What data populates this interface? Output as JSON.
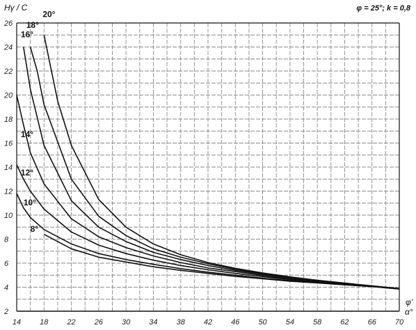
{
  "chart_data": {
    "type": "line",
    "title": "",
    "ylabel": "Hγ / C",
    "xlabel": "α°",
    "params_label": "φ = 25°; k = 0,8",
    "phi_label": "φ'",
    "xlim": [
      14,
      70
    ],
    "ylim": [
      2,
      26
    ],
    "x_ticks": [
      14,
      18,
      22,
      26,
      30,
      34,
      38,
      42,
      46,
      50,
      54,
      58,
      62,
      66,
      70
    ],
    "y_ticks": [
      2,
      4,
      6,
      8,
      10,
      12,
      14,
      16,
      18,
      20,
      22,
      24,
      26
    ],
    "grid": true,
    "series": [
      {
        "name": "8°",
        "x": [
          18,
          22,
          26,
          30,
          34,
          38,
          42,
          46,
          50,
          54,
          58,
          62,
          66,
          70
        ],
        "y": [
          8.4,
          7.2,
          6.5,
          6.1,
          5.7,
          5.4,
          5.15,
          4.9,
          4.7,
          4.5,
          4.35,
          4.2,
          4.05,
          3.85
        ]
      },
      {
        "name": "10°",
        "x": [
          14,
          15,
          16,
          18,
          22,
          26,
          30,
          34,
          38,
          42,
          46,
          50,
          54,
          58,
          62,
          66,
          70
        ],
        "y": [
          11.8,
          10.6,
          9.8,
          8.8,
          7.6,
          6.8,
          6.3,
          5.9,
          5.55,
          5.25,
          5.0,
          4.75,
          4.55,
          4.38,
          4.2,
          4.05,
          3.85
        ]
      },
      {
        "name": "12°",
        "x": [
          14,
          15,
          16,
          18,
          22,
          26,
          30,
          34,
          38,
          42,
          46,
          50,
          54,
          58,
          62,
          66,
          70
        ],
        "y": [
          14.2,
          13.0,
          12.0,
          10.5,
          8.6,
          7.5,
          6.8,
          6.25,
          5.8,
          5.45,
          5.15,
          4.88,
          4.63,
          4.43,
          4.24,
          4.06,
          3.86
        ]
      },
      {
        "name": "14°",
        "x": [
          14,
          15,
          16,
          18,
          22,
          26,
          30,
          34,
          38,
          42,
          46,
          50,
          54,
          58,
          62,
          66,
          70
        ],
        "y": [
          20.0,
          17.5,
          15.2,
          12.6,
          9.7,
          8.2,
          7.3,
          6.6,
          6.05,
          5.6,
          5.3,
          4.98,
          4.7,
          4.47,
          4.27,
          4.08,
          3.87
        ]
      },
      {
        "name": "16°",
        "x": [
          15,
          16,
          18,
          22,
          26,
          30,
          34,
          38,
          42,
          46,
          50,
          54,
          58,
          62,
          66,
          70
        ],
        "y": [
          24.0,
          20.5,
          15.8,
          11.2,
          9.0,
          7.8,
          6.9,
          6.3,
          5.8,
          5.4,
          5.07,
          4.78,
          4.52,
          4.3,
          4.09,
          3.88
        ]
      },
      {
        "name": "18°",
        "x": [
          16,
          17,
          18,
          22,
          26,
          30,
          34,
          38,
          42,
          46,
          50,
          54,
          58,
          62,
          66,
          70
        ],
        "y": [
          24.0,
          22.0,
          19.2,
          13.0,
          9.9,
          8.3,
          7.2,
          6.5,
          5.95,
          5.5,
          5.13,
          4.83,
          4.56,
          4.32,
          4.1,
          3.88
        ]
      },
      {
        "name": "20°",
        "x": [
          18,
          20,
          22,
          26,
          30,
          34,
          38,
          42,
          46,
          50,
          54,
          58,
          62,
          66,
          70
        ],
        "y": [
          25.0,
          19.5,
          15.8,
          11.3,
          9.0,
          7.6,
          6.7,
          6.05,
          5.57,
          5.18,
          4.86,
          4.58,
          4.34,
          4.11,
          3.89
        ]
      }
    ]
  }
}
